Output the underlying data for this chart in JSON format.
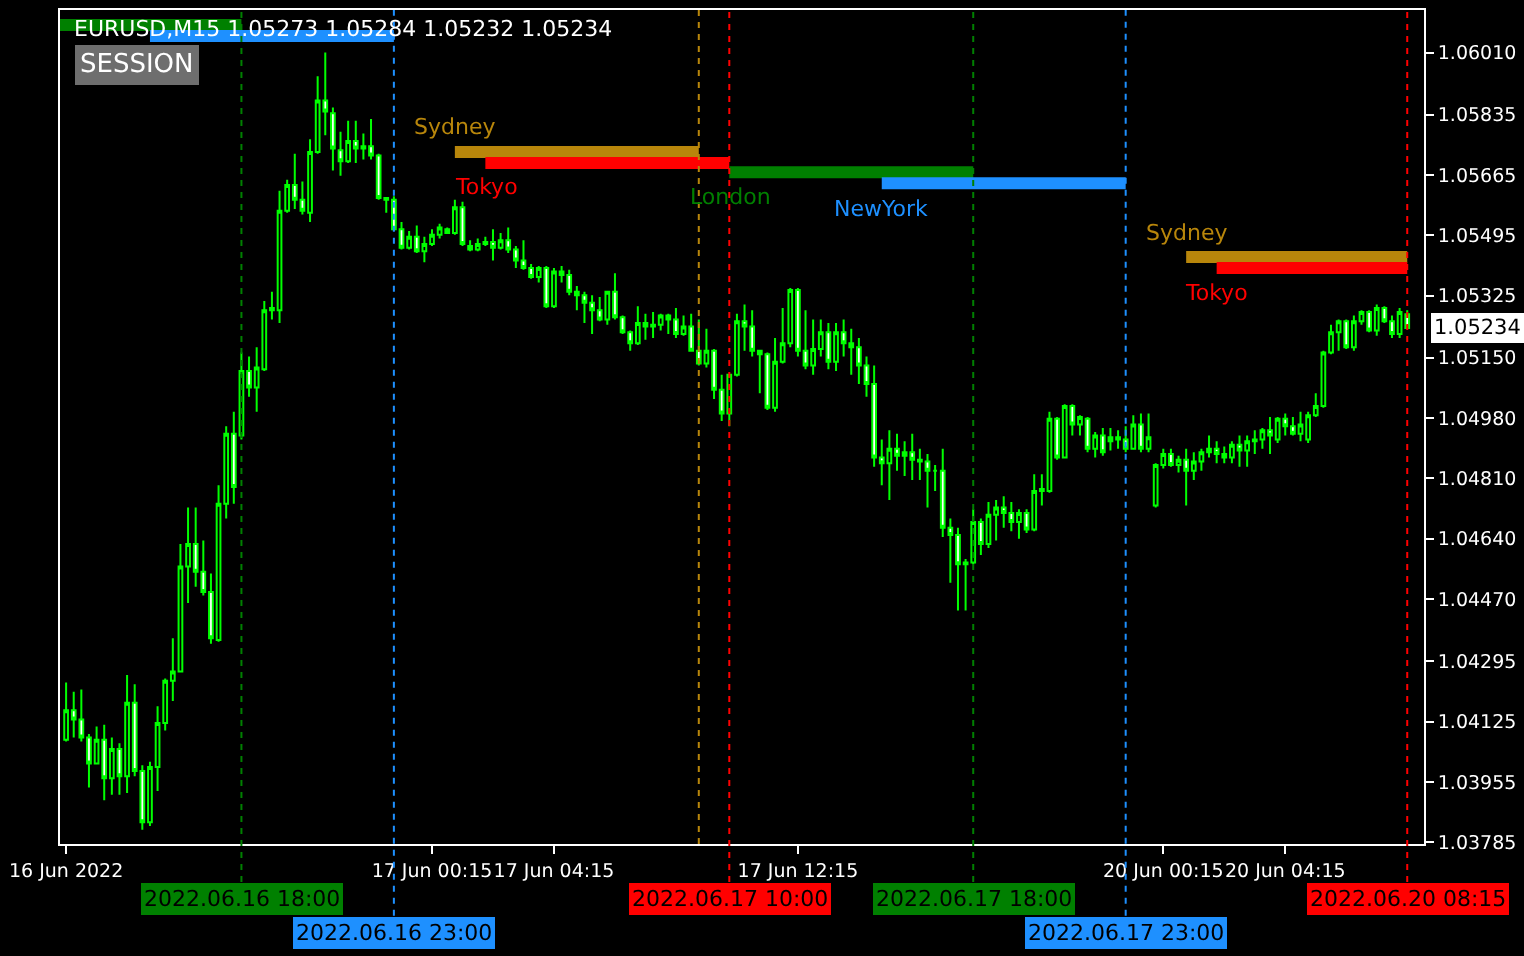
{
  "chart_data": [
    {
      "type": "candlestick",
      "title": "EURUSD,M15 1.05273 1.05284 1.05232 1.05234",
      "color": "#00ff00",
      "x": [
        "2022-06-16T12:15",
        "2022-06-16T12:30",
        "2022-06-16T12:45",
        "2022-06-16T13:00",
        "2022-06-16T13:15",
        "2022-06-16T13:30",
        "2022-06-16T13:45",
        "2022-06-16T14:00",
        "2022-06-16T14:15",
        "2022-06-16T14:30",
        "2022-06-16T14:45",
        "2022-06-16T15:00",
        "2022-06-16T15:15",
        "2022-06-16T15:30",
        "2022-06-16T15:45",
        "2022-06-16T16:00",
        "2022-06-16T16:15",
        "2022-06-16T16:30",
        "2022-06-16T16:45",
        "2022-06-16T17:00",
        "2022-06-16T17:15",
        "2022-06-16T17:30",
        "2022-06-16T17:45",
        "2022-06-16T18:00",
        "2022-06-16T18:15",
        "2022-06-16T18:30",
        "2022-06-16T18:45",
        "2022-06-16T19:00",
        "2022-06-16T19:15",
        "2022-06-16T19:30",
        "2022-06-16T19:45",
        "2022-06-16T20:00",
        "2022-06-16T20:15",
        "2022-06-16T20:30",
        "2022-06-16T20:45",
        "2022-06-16T21:00",
        "2022-06-16T21:15",
        "2022-06-16T21:30",
        "2022-06-16T21:45",
        "2022-06-16T22:00",
        "2022-06-16T22:15",
        "2022-06-16T22:30",
        "2022-06-16T22:45",
        "2022-06-16T23:00",
        "2022-06-16T23:15",
        "2022-06-16T23:30",
        "2022-06-16T23:45",
        "2022-06-17T00:00",
        "2022-06-17T00:15",
        "2022-06-17T00:30",
        "2022-06-17T00:45",
        "2022-06-17T01:00",
        "2022-06-17T01:15",
        "2022-06-17T01:30",
        "2022-06-17T01:45",
        "2022-06-17T02:00",
        "2022-06-17T02:15",
        "2022-06-17T02:30",
        "2022-06-17T02:45",
        "2022-06-17T03:00",
        "2022-06-17T03:15",
        "2022-06-17T03:30",
        "2022-06-17T03:45",
        "2022-06-17T04:00",
        "2022-06-17T04:15",
        "2022-06-17T04:30",
        "2022-06-17T04:45",
        "2022-06-17T05:00",
        "2022-06-17T05:15",
        "2022-06-17T05:30",
        "2022-06-17T05:45",
        "2022-06-17T06:00",
        "2022-06-17T06:15",
        "2022-06-17T06:30",
        "2022-06-17T06:45",
        "2022-06-17T07:00",
        "2022-06-17T07:15",
        "2022-06-17T07:30",
        "2022-06-17T07:45",
        "2022-06-17T08:00",
        "2022-06-17T08:15",
        "2022-06-17T08:30",
        "2022-06-17T08:45",
        "2022-06-17T09:00",
        "2022-06-17T09:15",
        "2022-06-17T09:30",
        "2022-06-17T09:45",
        "2022-06-17T10:00",
        "2022-06-17T10:15",
        "2022-06-17T10:30",
        "2022-06-17T10:45",
        "2022-06-17T11:00",
        "2022-06-17T11:15",
        "2022-06-17T11:30",
        "2022-06-17T11:45",
        "2022-06-17T12:00",
        "2022-06-17T12:15",
        "2022-06-17T12:30",
        "2022-06-17T12:45",
        "2022-06-17T13:00",
        "2022-06-17T13:15",
        "2022-06-17T13:30",
        "2022-06-17T13:45",
        "2022-06-17T14:00",
        "2022-06-17T14:15",
        "2022-06-17T14:30",
        "2022-06-17T14:45",
        "2022-06-17T15:00",
        "2022-06-17T15:15",
        "2022-06-17T15:30",
        "2022-06-17T15:45",
        "2022-06-17T16:00",
        "2022-06-17T16:15",
        "2022-06-17T16:30",
        "2022-06-17T16:45",
        "2022-06-17T17:00",
        "2022-06-17T17:15",
        "2022-06-17T17:30",
        "2022-06-17T17:45",
        "2022-06-17T18:00",
        "2022-06-17T18:15",
        "2022-06-17T18:30",
        "2022-06-17T18:45",
        "2022-06-17T19:00",
        "2022-06-17T19:15",
        "2022-06-17T19:30",
        "2022-06-17T19:45",
        "2022-06-17T20:00",
        "2022-06-17T20:15",
        "2022-06-17T20:30",
        "2022-06-17T20:45",
        "2022-06-17T21:00",
        "2022-06-17T21:15",
        "2022-06-17T21:30",
        "2022-06-17T21:45",
        "2022-06-17T22:00",
        "2022-06-17T22:15",
        "2022-06-17T22:30",
        "2022-06-17T22:45",
        "2022-06-17T23:00",
        "2022-06-17T23:15",
        "2022-06-17T23:30",
        "2022-06-17T23:45"
      ],
      "ohlc": [
        [
          1.04074,
          1.04235,
          1.04069,
          1.04157
        ],
        [
          1.04157,
          1.04209,
          1.0408,
          1.04131
        ],
        [
          1.04131,
          1.04215,
          1.04069,
          1.0408
        ],
        [
          1.0408,
          1.0409,
          1.03939,
          1.04007
        ],
        [
          1.04007,
          1.04111,
          1.04007,
          1.04074
        ],
        [
          1.04074,
          1.04116,
          1.03903,
          1.03965
        ],
        [
          1.03965,
          1.0408,
          1.03919,
          1.04048
        ],
        [
          1.04048,
          1.04064,
          1.03919,
          1.03971
        ],
        [
          1.03971,
          1.04256,
          1.03924,
          1.04178
        ],
        [
          1.04178,
          1.0423,
          1.03971,
          1.03986
        ],
        [
          1.03986,
          1.04002,
          1.0382,
          1.03841
        ],
        [
          1.03841,
          1.04012,
          1.03831,
          1.03997
        ],
        [
          1.03997,
          1.04168,
          1.03929,
          1.04121
        ],
        [
          1.04121,
          1.04246,
          1.041,
          1.0424
        ],
        [
          1.0424,
          1.0436,
          1.04183,
          1.04266
        ],
        [
          1.04266,
          1.04625,
          1.04266,
          1.04562
        ],
        [
          1.04562,
          1.04728,
          1.04459,
          1.04625
        ],
        [
          1.04625,
          1.04728,
          1.04505,
          1.04547
        ],
        [
          1.04547,
          1.04635,
          1.0448,
          1.0449
        ],
        [
          1.0449,
          1.04542,
          1.04344,
          1.0436
        ],
        [
          1.04355,
          1.04791,
          1.0435,
          1.04739
        ],
        [
          1.04739,
          1.04957,
          1.04697,
          1.04936
        ],
        [
          1.04936,
          1.04998,
          1.04739,
          1.04786
        ],
        [
          1.04931,
          1.05165,
          1.0492,
          1.05113
        ],
        [
          1.05113,
          1.05154,
          1.0504,
          1.05066
        ],
        [
          1.05066,
          1.0518,
          1.04998,
          1.05123
        ],
        [
          1.05118,
          1.0531,
          1.05113,
          1.05284
        ],
        [
          1.05284,
          1.05336,
          1.05258,
          1.0529
        ],
        [
          1.05284,
          1.05621,
          1.05248,
          1.05564
        ],
        [
          1.05564,
          1.05652,
          1.05559,
          1.05637
        ],
        [
          1.05637,
          1.05725,
          1.05569,
          1.05595
        ],
        [
          1.05595,
          1.05647,
          1.05554,
          1.05564
        ],
        [
          1.05559,
          1.05766,
          1.05533,
          1.0573
        ],
        [
          1.0573,
          1.05943,
          1.05725,
          1.05875
        ],
        [
          1.05875,
          1.0601,
          1.05777,
          1.05844
        ],
        [
          1.05839,
          1.05855,
          1.05678,
          1.0574
        ],
        [
          1.05735,
          1.05787,
          1.05663,
          1.05704
        ],
        [
          1.05704,
          1.05818,
          1.05699,
          1.05761
        ],
        [
          1.05761,
          1.05818,
          1.05699,
          1.0574
        ],
        [
          1.0574,
          1.05782,
          1.05709,
          1.05746
        ],
        [
          1.05746,
          1.05823,
          1.05709,
          1.0572
        ],
        [
          1.0572,
          1.05725,
          1.05595,
          1.056
        ],
        [
          1.056,
          1.056,
          1.05559,
          1.05595
        ],
        [
          1.05595,
          1.05605,
          1.05507,
          1.05512
        ],
        [
          1.05512,
          1.05533,
          1.05455,
          1.0546
        ],
        [
          1.0546,
          1.05507,
          1.05455,
          1.05491
        ],
        [
          1.05491,
          1.05523,
          1.05445,
          1.0545
        ],
        [
          1.0545,
          1.05491,
          1.05419,
          1.05471
        ],
        [
          1.05471,
          1.05512,
          1.05465,
          1.05497
        ],
        [
          1.05497,
          1.05528,
          1.05486,
          1.05517
        ],
        [
          1.05512,
          1.05517,
          1.05502,
          1.05502
        ],
        [
          1.05502,
          1.05595,
          1.05497,
          1.05574
        ],
        [
          1.05574,
          1.0559,
          1.05465,
          1.05471
        ],
        [
          1.05465,
          1.05481,
          1.0545,
          1.05455
        ],
        [
          1.05455,
          1.05486,
          1.0545,
          1.05471
        ],
        [
          1.05471,
          1.05491,
          1.05465,
          1.05476
        ],
        [
          1.05476,
          1.05512,
          1.05424,
          1.0546
        ],
        [
          1.0546,
          1.05502,
          1.05455,
          1.05481
        ],
        [
          1.05481,
          1.05517,
          1.05445,
          1.05455
        ],
        [
          1.05455,
          1.05465,
          1.05403,
          1.05424
        ],
        [
          1.05424,
          1.05481,
          1.05398,
          1.05403
        ],
        [
          1.05403,
          1.05414,
          1.05373,
          1.05378
        ],
        [
          1.05378,
          1.05409,
          1.05362,
          1.05403
        ],
        [
          1.05403,
          1.05409,
          1.0529,
          1.05295
        ],
        [
          1.05295,
          1.05403,
          1.0529,
          1.05393
        ],
        [
          1.05393,
          1.05409,
          1.05362,
          1.05383
        ],
        [
          1.05383,
          1.05398,
          1.05326,
          1.05336
        ],
        [
          1.05336,
          1.05352,
          1.05284,
          1.05326
        ],
        [
          1.05326,
          1.05336,
          1.05248,
          1.05305
        ],
        [
          1.05305,
          1.05326,
          1.05217,
          1.05284
        ],
        [
          1.05284,
          1.05321,
          1.05253,
          1.05258
        ],
        [
          1.05258,
          1.05336,
          1.05243,
          1.05336
        ],
        [
          1.05336,
          1.05388,
          1.05258,
          1.05264
        ],
        [
          1.05264,
          1.05269,
          1.05217,
          1.05222
        ],
        [
          1.05222,
          1.05227,
          1.0517,
          1.05191
        ],
        [
          1.05191,
          1.05295,
          1.05186,
          1.05248
        ],
        [
          1.05248,
          1.05274,
          1.05201,
          1.05238
        ],
        [
          1.05238,
          1.05279,
          1.05206,
          1.05243
        ],
        [
          1.05243,
          1.05274,
          1.05227,
          1.05269
        ],
        [
          1.05269,
          1.05274,
          1.05217,
          1.05258
        ],
        [
          1.05258,
          1.0529,
          1.05206,
          1.05217
        ],
        [
          1.05217,
          1.05269,
          1.05212,
          1.05238
        ],
        [
          1.05238,
          1.05274,
          1.0517,
          1.0517
        ],
        [
          1.0517,
          1.05258,
          1.05128,
          1.05134
        ],
        [
          1.05134,
          1.05232,
          1.05123,
          1.0517
        ],
        [
          1.0517,
          1.05175,
          1.05034,
          1.0506
        ],
        [
          1.0506,
          1.05102,
          1.04972,
          1.04993
        ],
        [
          1.04993,
          1.05102,
          1.04957,
          1.05102
        ],
        [
          1.05102,
          1.05274,
          1.05097,
          1.05253
        ],
        [
          1.05253,
          1.053,
          1.0517,
          1.05238
        ],
        [
          1.05238,
          1.05284,
          1.05154,
          1.0517
        ],
        [
          1.0517,
          1.0517,
          1.0505,
          1.0516
        ],
        [
          1.0516,
          1.05165,
          1.05003,
          1.05009
        ],
        [
          1.05009,
          1.05206,
          1.04998,
          1.05139
        ],
        [
          1.05139,
          1.0529,
          1.05134,
          1.05191
        ],
        [
          1.05191,
          1.05347,
          1.0518,
          1.05341
        ],
        [
          1.05341,
          1.05347,
          1.05154,
          1.0517
        ],
        [
          1.0517,
          1.05284,
          1.05118,
          1.05128
        ],
        [
          1.05128,
          1.05258,
          1.05102,
          1.05175
        ],
        [
          1.05175,
          1.05258,
          1.05154,
          1.05222
        ],
        [
          1.05222,
          1.05248,
          1.05118,
          1.05139
        ],
        [
          1.05139,
          1.05248,
          1.05113,
          1.05222
        ],
        [
          1.05222,
          1.05258,
          1.05154,
          1.05191
        ],
        [
          1.05191,
          1.05232,
          1.05102,
          1.0518
        ],
        [
          1.0518,
          1.05206,
          1.05076,
          1.05128
        ],
        [
          1.05128,
          1.05154,
          1.0504,
          1.05076
        ],
        [
          1.05076,
          1.05128,
          1.04843,
          1.04869
        ],
        [
          1.04869,
          1.0492,
          1.04791,
          1.04853
        ],
        [
          1.04853,
          1.04946,
          1.04749,
          1.04894
        ],
        [
          1.04894,
          1.04936,
          1.04832,
          1.04874
        ],
        [
          1.04874,
          1.04915,
          1.04817,
          1.04884
        ],
        [
          1.04884,
          1.04936,
          1.04806,
          1.04863
        ],
        [
          1.04863,
          1.04894,
          1.04806,
          1.04858
        ],
        [
          1.04858,
          1.04879,
          1.04728,
          1.04832
        ],
        [
          1.04832,
          1.04848,
          1.04775,
          1.04832
        ],
        [
          1.04832,
          1.04894,
          1.04645,
          1.04671
        ],
        [
          1.04671,
          1.04697,
          1.04516,
          1.04651
        ],
        [
          1.04651,
          1.04671,
          1.04438,
          1.04568
        ],
        [
          1.04568,
          1.04583,
          1.04438,
          1.04573
        ],
        [
          1.04573,
          1.04723,
          1.04568,
          1.04687
        ],
        [
          1.04687,
          1.04697,
          1.04594,
          1.04625
        ],
        [
          1.04625,
          1.04744,
          1.04614,
          1.04708
        ],
        [
          1.04708,
          1.04749,
          1.04635,
          1.04728
        ],
        [
          1.04728,
          1.0476,
          1.04671,
          1.04713
        ],
        [
          1.04713,
          1.04744,
          1.04661,
          1.04687
        ],
        [
          1.04687,
          1.04723,
          1.0464,
          1.04713
        ],
        [
          1.04713,
          1.04723,
          1.04656,
          1.04666
        ],
        [
          1.04666,
          1.04822,
          1.04661,
          1.04775
        ],
        [
          1.04775,
          1.04822,
          1.04734,
          1.0478
        ],
        [
          1.04775,
          1.04998,
          1.0477,
          1.04978
        ],
        [
          1.04978,
          1.04983,
          1.04863,
          1.04869
        ],
        [
          1.04869,
          1.05019,
          1.04869,
          1.05014
        ],
        [
          1.05014,
          1.05019,
          1.04931,
          1.04962
        ],
        [
          1.04962,
          1.04988,
          1.04931,
          1.04983
        ],
        [
          1.04978,
          1.04983,
          1.04884,
          1.04894
        ],
        [
          1.04894,
          1.04941,
          1.04869,
          1.04931
        ],
        [
          1.04931,
          1.04952,
          1.04874,
          1.04884
        ],
        [
          1.04915,
          1.04952,
          1.04889,
          1.04926
        ],
        [
          1.04926,
          1.04946,
          1.04894,
          1.0492
        ],
        [
          1.0492,
          1.04957,
          1.04884,
          1.04894
        ],
        [
          1.04894,
          1.04988,
          1.04894,
          1.04962
        ],
        [
          1.04962,
          1.04993,
          1.04884,
          1.04894
        ],
        [
          1.04894,
          1.04993,
          1.04884,
          1.04926
        ]
      ],
      "series": [
        {
          "type": "line",
          "color": "#008000",
          "x": [
            "2022-06-16T12:03",
            "2022-06-16T18:00"
          ],
          "values": [
            1.06088,
            1.06088
          ]
        },
        {
          "type": "line",
          "color": "#1e90ff",
          "x": [
            "2022-06-16T15:00",
            "2022-06-16T23:00"
          ],
          "values": [
            1.06057,
            1.06057
          ]
        },
        {
          "type": "line",
          "name": "Sydney",
          "color": "#b8860b",
          "x": [
            "2022-06-17T01:00",
            "2022-06-17T09:00"
          ],
          "values": [
            1.0573,
            1.0573
          ]
        },
        {
          "type": "line",
          "name": "Tokyo",
          "color": "#ff0000",
          "x": [
            "2022-06-17T02:00",
            "2022-06-17T10:00"
          ],
          "values": [
            1.05699,
            1.05699
          ]
        },
        {
          "type": "line",
          "name": "London",
          "color": "#008000",
          "x": [
            "2022-06-17T10:00",
            "2022-06-17T18:00"
          ],
          "values": [
            1.05673,
            1.05673
          ]
        },
        {
          "type": "line",
          "name": "NewYork",
          "color": "#1e90ff",
          "x": [
            "2022-06-17T15:00",
            "2022-06-17T23:00"
          ],
          "values": [
            1.05642,
            1.05642
          ]
        }
      ],
      "ref_lines": [
        {
          "axis": "x",
          "value": "2022-06-16T18:00",
          "label": "2022.06.16 18:00",
          "color": "#008000",
          "line_style": "dotted"
        },
        {
          "axis": "x",
          "value": "2022-06-16T23:00",
          "label": "2022.06.16 23:00",
          "color": "#1e90ff",
          "line_style": "dotted"
        },
        {
          "axis": "x",
          "value": "2022-06-17T09:00",
          "label": null,
          "color": "#b8860b",
          "line_style": "dotted"
        },
        {
          "axis": "x",
          "value": "2022-06-17T10:00",
          "label": "2022.06.17 10:00",
          "color": "#ff0000",
          "line_style": "dotted"
        },
        {
          "axis": "x",
          "value": "2022-06-17T18:00",
          "label": "2022.06.17 18:00",
          "color": "#008000",
          "line_style": "dotted"
        },
        {
          "axis": "x",
          "value": "2022-06-17T23:00",
          "label": "2022.06.17 23:00",
          "color": "#1e90ff",
          "line_style": "dotted"
        }
      ],
      "annotations": [
        "SESSION"
      ],
      "xlim": [
        "2022-06-16T12:03",
        "2022-06-17T23:52"
      ],
      "xticks": [
        {
          "value": "2022-06-16T12:15",
          "label": "16 Jun 2022"
        },
        {
          "value": "2022-06-17T00:15",
          "label": "17 Jun 00:15"
        },
        {
          "value": "2022-06-17T04:15",
          "label": "17 Jun 04:15"
        },
        {
          "value": "2022-06-17T12:15",
          "label": "17 Jun 12:15"
        }
      ],
      "ylim": [
        1.0378,
        1.0613
      ],
      "tick_labels": "x",
      "grid": false
    },
    {
      "type": "candlestick",
      "color": "#00ff00",
      "x": [
        "2022-06-20T00:00",
        "2022-06-20T00:15",
        "2022-06-20T00:30",
        "2022-06-20T00:45",
        "2022-06-20T01:00",
        "2022-06-20T01:15",
        "2022-06-20T01:30",
        "2022-06-20T01:45",
        "2022-06-20T02:00",
        "2022-06-20T02:15",
        "2022-06-20T02:30",
        "2022-06-20T02:45",
        "2022-06-20T03:00",
        "2022-06-20T03:15",
        "2022-06-20T03:30",
        "2022-06-20T03:45",
        "2022-06-20T04:00",
        "2022-06-20T04:15",
        "2022-06-20T04:30",
        "2022-06-20T04:45",
        "2022-06-20T05:00",
        "2022-06-20T05:15",
        "2022-06-20T05:30",
        "2022-06-20T05:45",
        "2022-06-20T06:00",
        "2022-06-20T06:15",
        "2022-06-20T06:30",
        "2022-06-20T06:45",
        "2022-06-20T07:00",
        "2022-06-20T07:15",
        "2022-06-20T07:30",
        "2022-06-20T07:45",
        "2022-06-20T08:00",
        "2022-06-20T08:15"
      ],
      "ohlc": [
        [
          1.04734,
          1.04853,
          1.04728,
          1.04848
        ],
        [
          1.04848,
          1.04894,
          1.04838,
          1.04879
        ],
        [
          1.04879,
          1.04894,
          1.04843,
          1.04848
        ],
        [
          1.04848,
          1.04874,
          1.04827,
          1.04863
        ],
        [
          1.04863,
          1.04894,
          1.04734,
          1.04832
        ],
        [
          1.04832,
          1.04884,
          1.04806,
          1.04858
        ],
        [
          1.04858,
          1.04894,
          1.04832,
          1.04884
        ],
        [
          1.04884,
          1.04931,
          1.04869,
          1.04894
        ],
        [
          1.04894,
          1.04915,
          1.04853,
          1.04879
        ],
        [
          1.04879,
          1.049,
          1.04853,
          1.04869
        ],
        [
          1.04869,
          1.04915,
          1.04853,
          1.04905
        ],
        [
          1.04905,
          1.04931,
          1.04843,
          1.04889
        ],
        [
          1.04889,
          1.04931,
          1.04843,
          1.04915
        ],
        [
          1.04915,
          1.04946,
          1.04879,
          1.0492
        ],
        [
          1.0492,
          1.04952,
          1.04894,
          1.04946
        ],
        [
          1.04946,
          1.04983,
          1.04879,
          1.04931
        ],
        [
          1.0492,
          1.04983,
          1.0491,
          1.04978
        ],
        [
          1.04978,
          1.04993,
          1.04931,
          1.04957
        ],
        [
          1.04957,
          1.04983,
          1.04931,
          1.04936
        ],
        [
          1.04936,
          1.04998,
          1.04915,
          1.04962
        ],
        [
          1.0492,
          1.04998,
          1.0491,
          1.04988
        ],
        [
          1.04988,
          1.0505,
          1.04983,
          1.05014
        ],
        [
          1.05014,
          1.0517,
          1.05009,
          1.05165
        ],
        [
          1.05165,
          1.05243,
          1.0516,
          1.05222
        ],
        [
          1.05222,
          1.05258,
          1.0517,
          1.05253
        ],
        [
          1.05253,
          1.05258,
          1.05175,
          1.0518
        ],
        [
          1.0518,
          1.05269,
          1.0517,
          1.05253
        ],
        [
          1.05253,
          1.05284,
          1.05243,
          1.05279
        ],
        [
          1.05279,
          1.05284,
          1.05222,
          1.05227
        ],
        [
          1.05227,
          1.053,
          1.05212,
          1.0529
        ],
        [
          1.0529,
          1.05295,
          1.05248,
          1.05253
        ],
        [
          1.05253,
          1.05269,
          1.05206,
          1.05217
        ],
        [
          1.05217,
          1.0529,
          1.05206,
          1.05279
        ],
        [
          1.05273,
          1.05284,
          1.05232,
          1.05234
        ]
      ],
      "series": [
        {
          "type": "line",
          "name": "Sydney",
          "color": "#b8860b",
          "x": [
            "2022-06-20T01:00",
            "2022-06-20T08:15"
          ],
          "values": [
            1.05434,
            1.05434
          ]
        },
        {
          "type": "line",
          "name": "Tokyo",
          "color": "#ff0000",
          "x": [
            "2022-06-20T02:00",
            "2022-06-20T08:15"
          ],
          "values": [
            1.05403,
            1.05403
          ]
        }
      ],
      "ref_lines": [
        {
          "axis": "x",
          "value": "2022-06-20T08:15",
          "label": "2022.06.20 08:15",
          "color": "#ff0000",
          "line_style": "dotted"
        }
      ],
      "annotations": [
        "1.05234"
      ],
      "xlim": [
        "2022-06-19T23:53",
        "2022-06-20T08:48"
      ],
      "xticks": [
        {
          "value": "2022-06-20T00:15",
          "label": "20 Jun 00:15"
        },
        {
          "value": "2022-06-20T04:15",
          "label": "20 Jun 04:15"
        }
      ],
      "ylim": [
        1.0378,
        1.0613
      ],
      "yticks": [
        {
          "value": 1.0601,
          "label": "1.06010"
        },
        1.05835,
        1.05665,
        1.05495,
        1.05325,
        {
          "value": 1.0515,
          "label": "1.05150"
        },
        {
          "value": 1.0498,
          "label": "1.04980"
        },
        {
          "value": 1.0481,
          "label": "1.04810"
        },
        {
          "value": 1.0464,
          "label": "1.04640"
        },
        {
          "value": 1.0447,
          "label": "1.04470"
        },
        1.04295,
        1.04125,
        1.03955,
        1.03785
      ]
    }
  ]
}
